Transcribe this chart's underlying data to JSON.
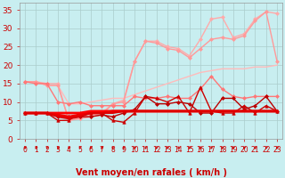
{
  "background_color": "#c8eef0",
  "grid_color": "#aacccc",
  "xlabel": "Vent moyen/en rafales ( km/h )",
  "xlabel_color": "#cc0000",
  "xlabel_fontsize": 7,
  "tick_color": "#cc0000",
  "xlim": [
    -0.5,
    23.5
  ],
  "ylim": [
    0,
    37
  ],
  "yticks": [
    0,
    5,
    10,
    15,
    20,
    25,
    30,
    35
  ],
  "xticks": [
    0,
    1,
    2,
    3,
    4,
    5,
    6,
    7,
    8,
    9,
    10,
    11,
    12,
    13,
    14,
    15,
    16,
    17,
    18,
    19,
    20,
    21,
    22,
    23
  ],
  "x": [
    0,
    1,
    2,
    3,
    4,
    5,
    6,
    7,
    8,
    9,
    10,
    11,
    12,
    13,
    14,
    15,
    16,
    17,
    18,
    19,
    20,
    21,
    22,
    23
  ],
  "lines": [
    {
      "y": [
        15.5,
        15.5,
        15.0,
        15.0,
        5.0,
        5.5,
        6.5,
        7.0,
        9.5,
        10.5,
        21.0,
        26.5,
        26.5,
        25.0,
        24.5,
        22.5,
        27.0,
        32.5,
        33.0,
        27.5,
        28.5,
        32.5,
        34.5,
        34.0
      ],
      "color": "#ffaaaa",
      "lw": 1.0,
      "marker": "D",
      "ms": 2.0,
      "zorder": 3
    },
    {
      "y": [
        15.5,
        15.5,
        14.5,
        14.5,
        5.0,
        5.5,
        6.0,
        6.5,
        9.5,
        10.0,
        21.0,
        26.5,
        26.0,
        24.5,
        24.0,
        22.0,
        24.5,
        27.0,
        27.5,
        27.0,
        28.0,
        32.0,
        34.5,
        21.0
      ],
      "color": "#ff9999",
      "lw": 1.0,
      "marker": "D",
      "ms": 2.0,
      "zorder": 3
    },
    {
      "y": [
        15.5,
        15.5,
        14.5,
        14.5,
        9.5,
        9.5,
        10.0,
        10.5,
        11.0,
        11.0,
        12.0,
        13.0,
        14.0,
        15.0,
        16.0,
        17.0,
        18.0,
        18.5,
        19.0,
        19.0,
        19.0,
        19.5,
        19.5,
        20.0
      ],
      "color": "#ffbbbb",
      "lw": 1.0,
      "marker": null,
      "ms": 0,
      "zorder": 2
    },
    {
      "y": [
        15.5,
        15.0,
        15.0,
        10.0,
        9.5,
        10.0,
        9.0,
        9.0,
        9.0,
        9.0,
        11.5,
        11.0,
        11.0,
        11.5,
        11.0,
        11.0,
        13.5,
        17.0,
        13.5,
        11.5,
        11.0,
        11.5,
        11.5,
        11.5
      ],
      "color": "#ff7777",
      "lw": 1.0,
      "marker": "D",
      "ms": 2.0,
      "zorder": 3
    },
    {
      "y": [
        7.0,
        7.0,
        7.0,
        7.0,
        7.0,
        7.0,
        7.5,
        7.5,
        7.5,
        7.5,
        7.5,
        7.5,
        7.5,
        7.5,
        7.5,
        7.5,
        7.5,
        7.5,
        7.5,
        7.5,
        7.5,
        7.5,
        7.5,
        7.5
      ],
      "color": "#ff0000",
      "lw": 2.0,
      "marker": null,
      "ms": 0,
      "zorder": 4
    },
    {
      "y": [
        7.0,
        7.0,
        7.0,
        6.5,
        6.0,
        6.5,
        7.0,
        7.0,
        7.5,
        7.5,
        7.5,
        7.5,
        7.5,
        7.5,
        7.5,
        7.5,
        7.5,
        7.5,
        7.5,
        7.5,
        7.5,
        7.5,
        7.5,
        7.5
      ],
      "color": "#ee0000",
      "lw": 2.0,
      "marker": null,
      "ms": 0,
      "zorder": 4
    },
    {
      "y": [
        7.0,
        7.0,
        7.0,
        6.0,
        5.5,
        6.0,
        7.0,
        7.0,
        7.0,
        7.5,
        7.5,
        7.5,
        7.5,
        7.5,
        7.5,
        7.5,
        7.5,
        7.5,
        7.5,
        7.5,
        7.5,
        7.5,
        7.5,
        7.5
      ],
      "color": "#dd0000",
      "lw": 1.5,
      "marker": null,
      "ms": 0,
      "zorder": 4
    },
    {
      "y": [
        7.0,
        7.0,
        7.0,
        5.0,
        5.0,
        7.0,
        7.0,
        7.0,
        5.0,
        4.5,
        7.0,
        11.5,
        11.0,
        10.0,
        11.5,
        7.0,
        14.0,
        7.5,
        7.0,
        7.0,
        9.0,
        7.0,
        9.0,
        7.5
      ],
      "color": "#cc0000",
      "lw": 1.0,
      "marker": "^",
      "ms": 2.5,
      "zorder": 3
    },
    {
      "y": [
        7.0,
        7.0,
        7.0,
        6.0,
        6.0,
        6.0,
        6.0,
        6.5,
        6.0,
        7.0,
        8.0,
        11.5,
        9.5,
        9.5,
        10.0,
        9.5,
        7.0,
        7.0,
        11.0,
        11.0,
        8.0,
        9.0,
        11.5,
        7.5
      ],
      "color": "#bb0000",
      "lw": 1.0,
      "marker": "D",
      "ms": 2.0,
      "zorder": 3
    }
  ]
}
